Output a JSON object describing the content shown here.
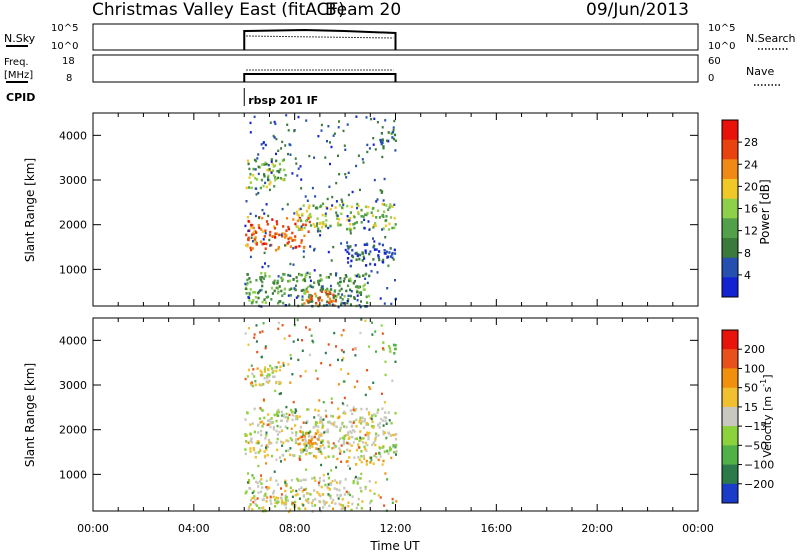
{
  "header": {
    "title": "Christmas Valley East (fitACF)",
    "beam": "Beam 20",
    "date": "09/Jun/2013"
  },
  "top_panels": {
    "nsky": {
      "left_label": "N.Sky",
      "right_label": "N.Search",
      "ticks": [
        "10^5",
        "10^0"
      ]
    },
    "freq": {
      "left_label_1": "Freq.",
      "left_label_2": "[MHz]",
      "left_ticks": [
        "18",
        "8"
      ],
      "right_ticks": [
        "60",
        "0"
      ],
      "right_label": "Nave"
    },
    "cpid": {
      "label": "CPID",
      "program": "rbsp 201 IF"
    }
  },
  "chart_data": [
    {
      "type": "heatmap",
      "title": "",
      "xlabel": "",
      "ylabel": "Slant Range [km]",
      "xlim": [
        "00:00",
        "24:00"
      ],
      "ylim": [
        180,
        4500
      ],
      "yticks": [
        "1000",
        "2000",
        "3000",
        "4000"
      ],
      "colorbar": {
        "label": "Power [dB]",
        "ticks": [
          "4",
          "8",
          "12",
          "16",
          "20",
          "24",
          "28"
        ],
        "range": [
          0,
          32
        ]
      },
      "data_window": [
        "06:00",
        "12:00"
      ],
      "features": [
        {
          "x": [
            6.0,
            8.6
          ],
          "range_km": [
            1450,
            2200
          ],
          "power_db": 26
        },
        {
          "x": [
            8.0,
            12.0
          ],
          "range_km": [
            1900,
            2500
          ],
          "power_db": 16
        },
        {
          "x": [
            6.0,
            7.6
          ],
          "range_km": [
            2850,
            3500
          ],
          "power_db": 14
        },
        {
          "x": [
            6.0,
            11.0
          ],
          "range_km": [
            200,
            950
          ],
          "power_db": 12
        },
        {
          "x": [
            8.3,
            9.6
          ],
          "range_km": [
            200,
            600
          ],
          "power_db": 24
        },
        {
          "x": [
            10.0,
            12.0
          ],
          "range_km": [
            1100,
            1600
          ],
          "power_db": 6
        },
        {
          "x": [
            11.3,
            12.0
          ],
          "range_km": [
            3700,
            4100
          ],
          "power_db": 6
        }
      ]
    },
    {
      "type": "heatmap",
      "title": "",
      "xlabel": "Time UT",
      "ylabel": "Slant Range [km]",
      "xlim": [
        "00:00",
        "24:00"
      ],
      "xticks": [
        "00:00",
        "04:00",
        "08:00",
        "12:00",
        "16:00",
        "20:00",
        "00:00"
      ],
      "ylim": [
        180,
        4500
      ],
      "yticks": [
        "1000",
        "2000",
        "3000",
        "4000"
      ],
      "colorbar": {
        "label": "Velocity [m s^-1]",
        "ticks": [
          "200",
          "100",
          "50",
          "15",
          "−15",
          "−50",
          "−100",
          "−200"
        ]
      },
      "data_window": [
        "06:00",
        "12:00"
      ],
      "features": [
        {
          "x": [
            6.0,
            12.0
          ],
          "range_km": [
            1400,
            2500
          ],
          "velocity": 0
        },
        {
          "x": [
            8.0,
            9.0
          ],
          "range_km": [
            1600,
            2000
          ],
          "velocity": -80
        },
        {
          "x": [
            10.0,
            11.5
          ],
          "range_km": [
            1250,
            1400
          ],
          "velocity": -40
        },
        {
          "x": [
            11.2,
            12.0
          ],
          "range_km": [
            1500,
            1700
          ],
          "velocity": 40
        },
        {
          "x": [
            11.4,
            12.0
          ],
          "range_km": [
            3700,
            4000
          ],
          "velocity": 40
        },
        {
          "x": [
            6.0,
            7.5
          ],
          "range_km": [
            3000,
            3500
          ],
          "velocity": 0
        },
        {
          "x": [
            6.0,
            11.0
          ],
          "range_km": [
            200,
            950
          ],
          "velocity": 0
        }
      ]
    }
  ],
  "colors": {
    "power": [
      "#1423d2",
      "#2650b0",
      "#3a7a3a",
      "#52a04a",
      "#8fd04a",
      "#f0c828",
      "#f08a14",
      "#e8420e",
      "#e8120a"
    ],
    "velocity": [
      "#1a3cc8",
      "#2c7a4a",
      "#52b048",
      "#8cd23c",
      "#c8c8c0",
      "#f0c030",
      "#f0900c",
      "#e8501c",
      "#e8140c"
    ]
  }
}
